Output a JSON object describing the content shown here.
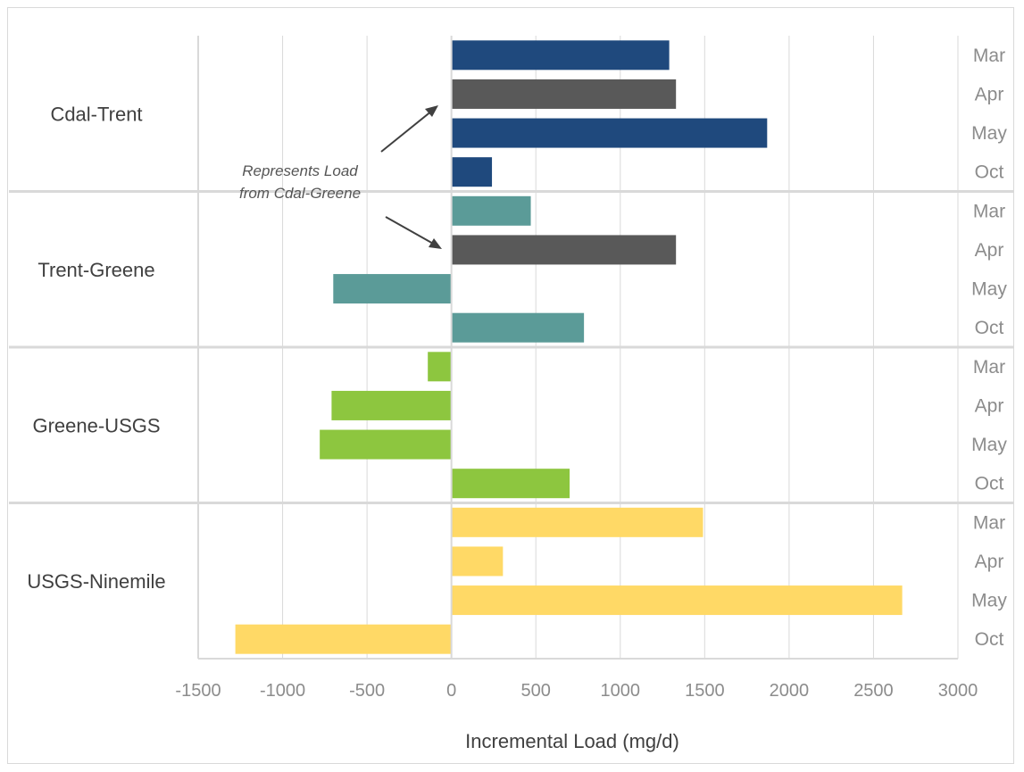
{
  "chart_data": {
    "type": "bar",
    "orientation": "horizontal",
    "xlabel": "Incremental Load (mg/d)",
    "xlim": [
      -1500,
      3000
    ],
    "xticks": [
      -1500,
      -1000,
      -500,
      0,
      500,
      1000,
      1500,
      2000,
      2500,
      3000
    ],
    "grid": true,
    "groups": [
      {
        "name": "Cdal-Trent",
        "color": "#1f497d",
        "bars": [
          {
            "month": "Mar",
            "value": 1290
          },
          {
            "month": "Apr",
            "value": 1330,
            "color": "#595959"
          },
          {
            "month": "May",
            "value": 1870
          },
          {
            "month": "Oct",
            "value": 240
          }
        ]
      },
      {
        "name": "Trent-Greene",
        "color": "#5b9b98",
        "bars": [
          {
            "month": "Mar",
            "value": 470
          },
          {
            "month": "Apr",
            "value": 1330,
            "color": "#595959"
          },
          {
            "month": "May",
            "value": -700
          },
          {
            "month": "Oct",
            "value": 785
          }
        ]
      },
      {
        "name": "Greene-USGS",
        "color": "#8dc63f",
        "bars": [
          {
            "month": "Mar",
            "value": -140
          },
          {
            "month": "Apr",
            "value": -710
          },
          {
            "month": "May",
            "value": -780
          },
          {
            "month": "Oct",
            "value": 700
          }
        ]
      },
      {
        "name": "USGS-Ninemile",
        "color": "#ffd966",
        "bars": [
          {
            "month": "Mar",
            "value": 1490
          },
          {
            "month": "Apr",
            "value": 305
          },
          {
            "month": "May",
            "value": 2670
          },
          {
            "month": "Oct",
            "value": -1280
          }
        ]
      }
    ],
    "annotation": {
      "lines": [
        "Represents Load",
        "from Cdal-Greene"
      ]
    }
  }
}
